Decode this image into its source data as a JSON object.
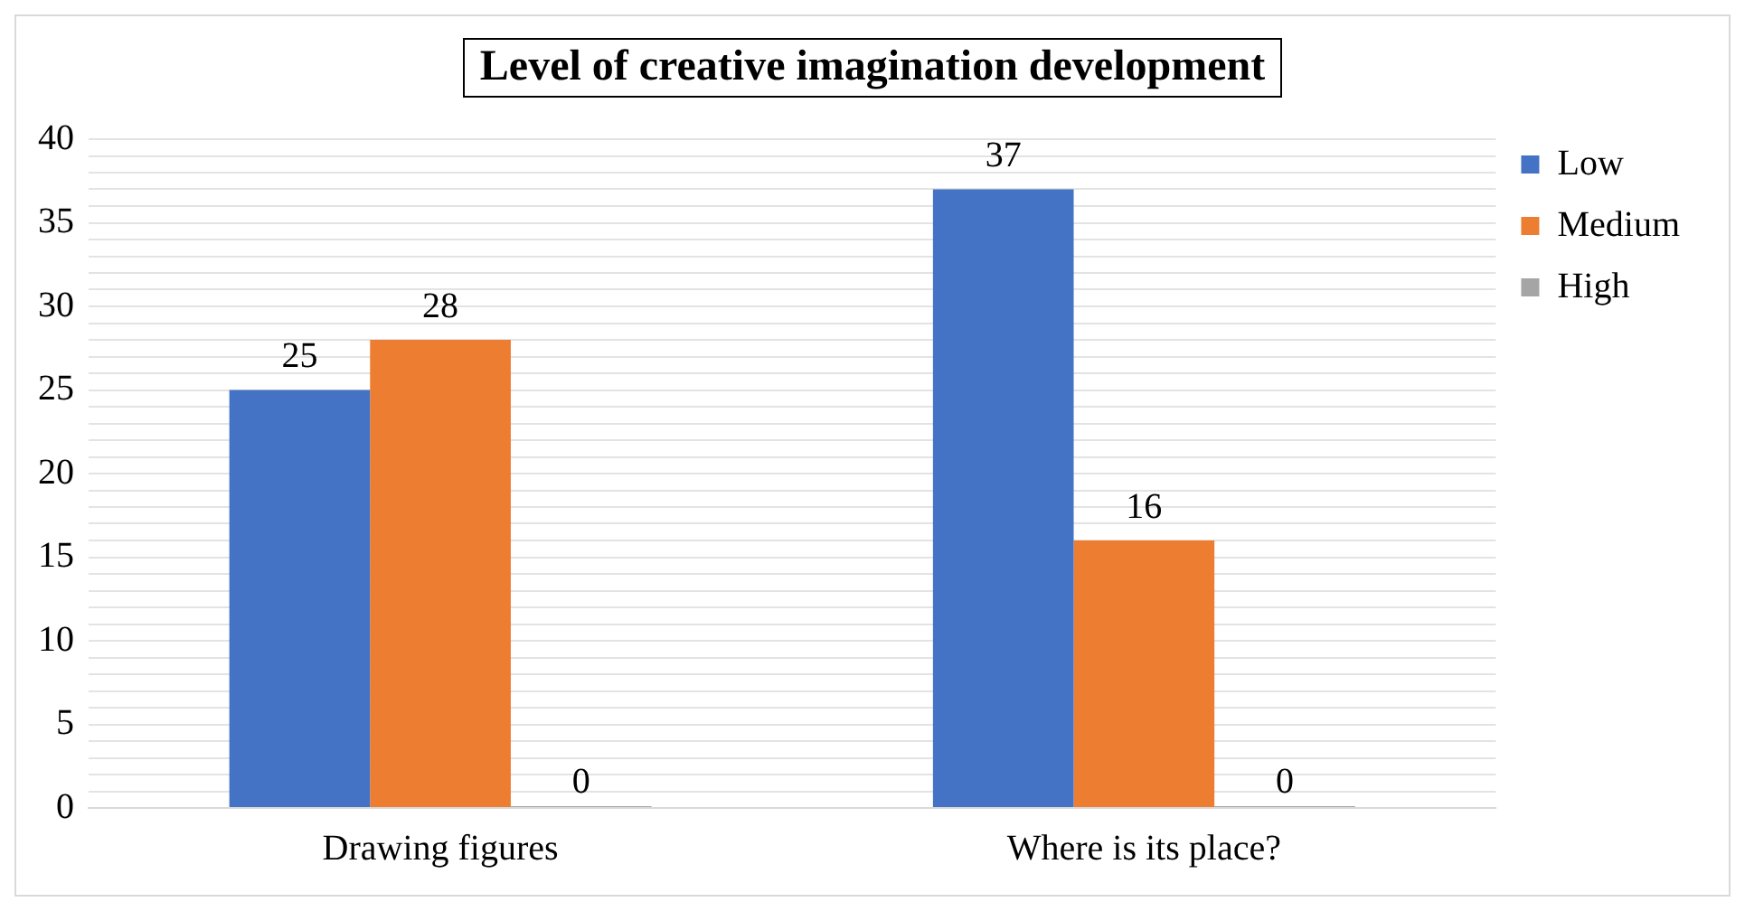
{
  "chart_data": {
    "type": "bar",
    "title": "Level of creative imagination development",
    "categories": [
      "Drawing figures",
      "Where is its place?"
    ],
    "series": [
      {
        "name": "Low",
        "color": "#4472c4",
        "values": [
          25,
          37
        ]
      },
      {
        "name": "Medium",
        "color": "#ed7d31",
        "values": [
          28,
          16
        ]
      },
      {
        "name": "High",
        "color": "#a5a5a5",
        "values": [
          0,
          0
        ]
      }
    ],
    "ylim": [
      0,
      40
    ],
    "yticks": [
      0,
      {
        "value": 1,
        "label": null
      },
      {
        "value": 2,
        "label": null
      },
      {
        "value": 3,
        "label": null
      },
      {
        "value": 4,
        "label": null
      },
      5,
      {
        "value": 6,
        "label": null
      },
      {
        "value": 7,
        "label": null
      },
      {
        "value": 8,
        "label": null
      },
      {
        "value": 9,
        "label": null
      },
      10,
      {
        "value": 11,
        "label": null
      },
      {
        "value": 12,
        "label": null
      },
      {
        "value": 13,
        "label": null
      },
      {
        "value": 14,
        "label": null
      },
      15,
      {
        "value": 16,
        "label": null
      },
      {
        "value": 17,
        "label": null
      },
      {
        "value": 18,
        "label": null
      },
      {
        "value": 19,
        "label": null
      },
      20,
      {
        "value": 21,
        "label": null
      },
      {
        "value": 22,
        "label": null
      },
      {
        "value": 23,
        "label": null
      },
      {
        "value": 24,
        "label": null
      },
      25,
      {
        "value": 26,
        "label": null
      },
      {
        "value": 27,
        "label": null
      },
      {
        "value": 28,
        "label": null
      },
      {
        "value": 29,
        "label": null
      },
      30,
      {
        "value": 31,
        "label": null
      },
      {
        "value": 32,
        "label": null
      },
      {
        "value": 33,
        "label": null
      },
      {
        "value": 34,
        "label": null
      },
      35,
      {
        "value": 36,
        "label": null
      },
      {
        "value": 37,
        "label": null
      },
      {
        "value": 38,
        "label": null
      },
      {
        "value": 39,
        "label": null
      },
      40
    ],
    "grid": "y",
    "legend": "top right",
    "data_labels": true
  }
}
